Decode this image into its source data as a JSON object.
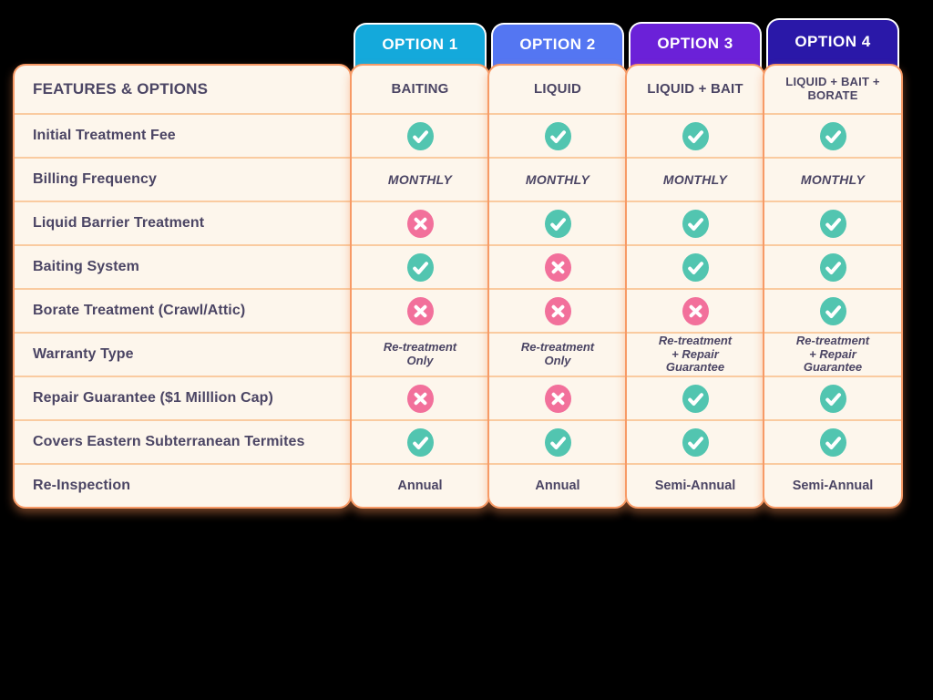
{
  "chart_data": {
    "type": "table",
    "tabs": [
      {
        "label": "OPTION 1",
        "color": "#14A9DB"
      },
      {
        "label": "OPTION 2",
        "color": "#5476F2"
      },
      {
        "label": "OPTION 3",
        "color": "#6B21D8"
      },
      {
        "label": "OPTION 4",
        "color": "#2A18A8"
      }
    ],
    "features_header": "FEATURES & OPTIONS",
    "column_headers": [
      "BAITING",
      "LIQUID",
      "LIQUID + BAIT",
      "LIQUID + BAIT +\nBORATE"
    ],
    "rows": [
      {
        "feature": "Initial Treatment Fee",
        "value_style": "icon",
        "values": [
          "yes",
          "yes",
          "yes",
          "yes"
        ]
      },
      {
        "feature": "Billing Frequency",
        "value_style": "italic-caps",
        "values": [
          "MONTHLY",
          "MONTHLY",
          "MONTHLY",
          "MONTHLY"
        ]
      },
      {
        "feature": "Liquid Barrier Treatment",
        "value_style": "icon",
        "values": [
          "no",
          "yes",
          "yes",
          "yes"
        ]
      },
      {
        "feature": "Baiting System",
        "value_style": "icon",
        "values": [
          "yes",
          "no",
          "yes",
          "yes"
        ]
      },
      {
        "feature": "Borate Treatment (Crawl/Attic)",
        "value_style": "icon",
        "values": [
          "no",
          "no",
          "no",
          "yes"
        ]
      },
      {
        "feature": "Warranty Type",
        "value_style": "multiline-italic",
        "values": [
          "Re-treatment\nOnly",
          "Re-treatment\nOnly",
          "Re-treatment\n+ Repair\nGuarantee",
          "Re-treatment\n+ Repair\nGuarantee"
        ]
      },
      {
        "feature": "Repair Guarantee ($1 Milllion Cap)",
        "value_style": "icon",
        "values": [
          "no",
          "no",
          "yes",
          "yes"
        ]
      },
      {
        "feature": "Covers Eastern Subterranean Termites",
        "value_style": "icon",
        "values": [
          "yes",
          "yes",
          "yes",
          "yes"
        ]
      },
      {
        "feature": "Re-Inspection",
        "value_style": "plain",
        "values": [
          "Annual",
          "Annual",
          "Semi-Annual",
          "Semi-Annual"
        ]
      }
    ],
    "legend": {
      "yes_icon": "check-icon",
      "no_icon": "cross-icon"
    }
  },
  "colors": {
    "page_bg": "#000000",
    "card_bg": "#FDF6EC",
    "card_border": "#F79A66",
    "row_divider": "#FACBA0",
    "text": "#4B4564",
    "check": "#52C5B0",
    "cross": "#F2709B",
    "tab_text": "#FFFFFF"
  }
}
